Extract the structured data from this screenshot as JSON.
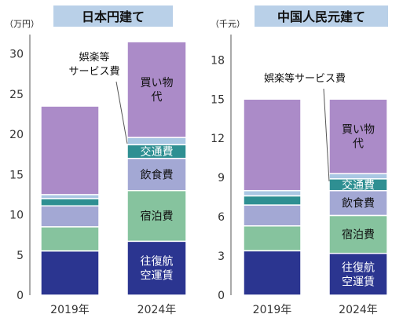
{
  "colors": {
    "transport": "#2b3590",
    "lodging": "#86c39e",
    "food": "#a3a8d4",
    "entertainment": "#2e8f92",
    "service": "#a9c7e3",
    "shopping": "#ab8bc8",
    "title_bg": "#b9d0e8"
  },
  "chart_data": [
    {
      "type": "bar",
      "title": "日本円建て",
      "unit": "（万円）",
      "categories": [
        "2019年",
        "2024年"
      ],
      "ylim": [
        0,
        32
      ],
      "yticks": [
        0,
        5,
        10,
        15,
        20,
        25,
        30
      ],
      "annotation": "娯楽等\nサービス費",
      "series": [
        {
          "name": "往復航\n空運賃",
          "key": "transport",
          "values": [
            5.5,
            6.7
          ]
        },
        {
          "name": "宿泊費",
          "key": "lodging",
          "values": [
            3.0,
            6.3
          ]
        },
        {
          "name": "飲食費",
          "key": "food",
          "values": [
            2.6,
            4.0
          ]
        },
        {
          "name": "交通費",
          "key": "entertainment",
          "values": [
            0.9,
            1.7
          ]
        },
        {
          "name": "",
          "key": "service",
          "values": [
            0.5,
            0.9
          ]
        },
        {
          "name": "買い物\n代",
          "key": "shopping",
          "values": [
            11.0,
            11.9
          ]
        }
      ]
    },
    {
      "type": "bar",
      "title": "中国人民元建て",
      "unit": "（千元）",
      "categories": [
        "2019年",
        "2024年"
      ],
      "ylim": [
        0,
        19.7
      ],
      "yticks": [
        0,
        3,
        6,
        9,
        12,
        15,
        18
      ],
      "annotation": "娯楽等サービス費",
      "series": [
        {
          "name": "往復航\n空運賃",
          "key": "transport",
          "values": [
            3.4,
            3.2
          ]
        },
        {
          "name": "宿泊費",
          "key": "lodging",
          "values": [
            1.9,
            2.9
          ]
        },
        {
          "name": "飲食費",
          "key": "food",
          "values": [
            1.6,
            1.9
          ]
        },
        {
          "name": "交通費",
          "key": "entertainment",
          "values": [
            0.7,
            0.9
          ]
        },
        {
          "name": "",
          "key": "service",
          "values": [
            0.4,
            0.4
          ]
        },
        {
          "name": "買い物\n代",
          "key": "shopping",
          "values": [
            7.0,
            5.7
          ]
        }
      ]
    }
  ]
}
